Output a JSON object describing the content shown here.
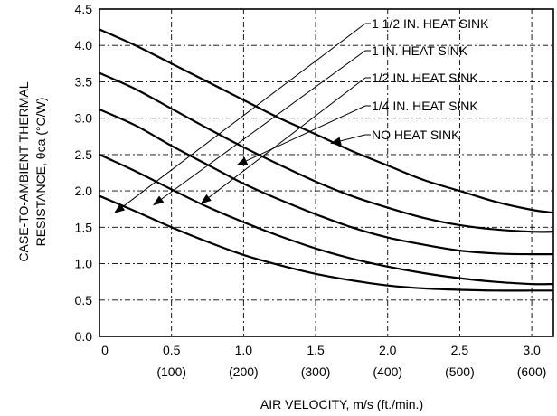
{
  "chart_data": {
    "type": "line",
    "xlabel": "AIR VELOCITY, m/s (ft./min.)",
    "ylabel_line1": "CASE-TO-AMBIENT THERMAL",
    "ylabel_line2": "RESISTANCE, θca (°C/W)",
    "xlim": [
      0,
      3.15
    ],
    "ylim": [
      0,
      4.5
    ],
    "grid": true,
    "x_ticks": [
      {
        "value": 0,
        "label": "0",
        "sublabel": ""
      },
      {
        "value": 0.5,
        "label": "0.5",
        "sublabel": "(100)"
      },
      {
        "value": 1.0,
        "label": "1.0",
        "sublabel": "(200)"
      },
      {
        "value": 1.5,
        "label": "1.5",
        "sublabel": "(300)"
      },
      {
        "value": 2.0,
        "label": "2.0",
        "sublabel": "(400)"
      },
      {
        "value": 2.5,
        "label": "2.5",
        "sublabel": "(500)"
      },
      {
        "value": 3.0,
        "label": "3.0",
        "sublabel": "(600)"
      }
    ],
    "y_ticks": [
      {
        "value": 0.0,
        "label": "0.0"
      },
      {
        "value": 0.5,
        "label": "0.5"
      },
      {
        "value": 1.0,
        "label": "1.0"
      },
      {
        "value": 1.5,
        "label": "1.5"
      },
      {
        "value": 2.0,
        "label": "2.0"
      },
      {
        "value": 2.5,
        "label": "2.5"
      },
      {
        "value": 3.0,
        "label": "3.0"
      },
      {
        "value": 3.5,
        "label": "3.5"
      },
      {
        "value": 4.0,
        "label": "4.0"
      },
      {
        "value": 4.5,
        "label": "4.5"
      }
    ],
    "series": [
      {
        "name": "NO HEAT SINK",
        "label_anchor": [
          1.6,
          2.65
        ],
        "x": [
          0,
          0.25,
          0.5,
          0.75,
          1.0,
          1.25,
          1.5,
          1.75,
          2.0,
          2.25,
          2.5,
          2.75,
          3.0,
          3.15
        ],
        "y": [
          4.22,
          4.0,
          3.75,
          3.5,
          3.25,
          3.0,
          2.78,
          2.55,
          2.35,
          2.15,
          2.0,
          1.85,
          1.74,
          1.7
        ]
      },
      {
        "name": "1/4 IN. HEAT SINK",
        "label_anchor": [
          0.95,
          2.35
        ],
        "x": [
          0,
          0.25,
          0.5,
          0.75,
          1.0,
          1.25,
          1.5,
          1.75,
          2.0,
          2.25,
          2.5,
          2.75,
          3.0,
          3.15
        ],
        "y": [
          3.62,
          3.4,
          3.13,
          2.86,
          2.6,
          2.36,
          2.13,
          1.93,
          1.77,
          1.63,
          1.53,
          1.47,
          1.44,
          1.44
        ]
      },
      {
        "name": "1/2 IN. HEAT SINK",
        "label_anchor": [
          0.7,
          1.82
        ],
        "x": [
          0,
          0.25,
          0.5,
          0.75,
          1.0,
          1.25,
          1.5,
          1.75,
          2.0,
          2.25,
          2.5,
          2.75,
          3.0,
          3.15
        ],
        "y": [
          3.12,
          2.9,
          2.62,
          2.36,
          2.1,
          1.88,
          1.68,
          1.5,
          1.36,
          1.26,
          1.18,
          1.14,
          1.13,
          1.13
        ]
      },
      {
        "name": "1 IN. HEAT SINK",
        "label_anchor": [
          0.37,
          1.8
        ],
        "x": [
          0,
          0.25,
          0.5,
          0.75,
          1.0,
          1.25,
          1.5,
          1.75,
          2.0,
          2.25,
          2.5,
          2.75,
          3.0,
          3.15
        ],
        "y": [
          2.5,
          2.27,
          2.02,
          1.78,
          1.57,
          1.38,
          1.21,
          1.07,
          0.96,
          0.87,
          0.8,
          0.75,
          0.72,
          0.72
        ]
      },
      {
        "name": "1 1/2 IN. HEAT SINK",
        "label_anchor": [
          0.1,
          1.69
        ],
        "x": [
          0,
          0.25,
          0.5,
          0.75,
          1.0,
          1.25,
          1.5,
          1.75,
          2.0,
          2.25,
          2.5,
          2.75,
          3.0,
          3.15
        ],
        "y": [
          1.93,
          1.72,
          1.5,
          1.3,
          1.12,
          0.98,
          0.86,
          0.77,
          0.7,
          0.66,
          0.64,
          0.63,
          0.63,
          0.63
        ]
      }
    ]
  }
}
